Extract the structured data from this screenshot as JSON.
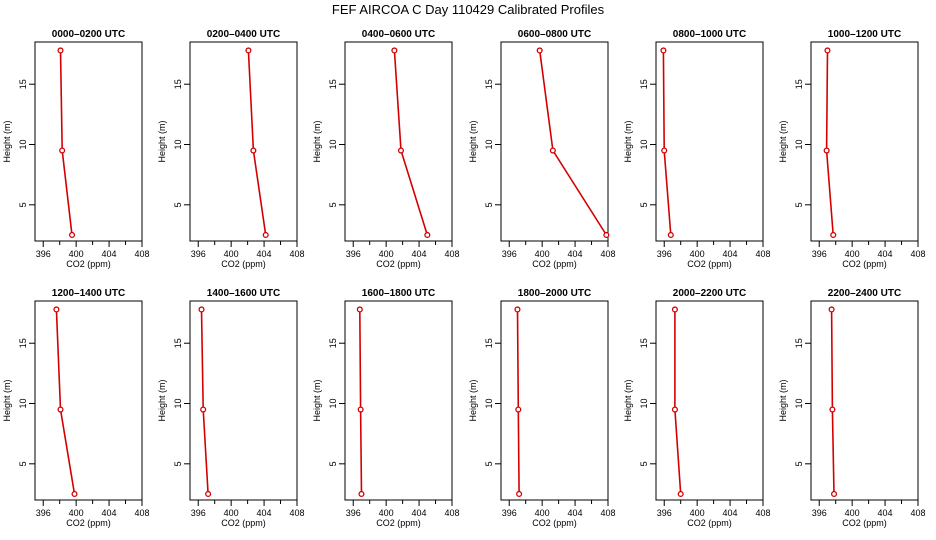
{
  "title": "FEF AIRCOA C  Day 110429  Calibrated Profiles",
  "colors": {
    "profile_line": "#d40000",
    "marker": "#d40000",
    "axes": "#000000"
  },
  "chart_data": [
    {
      "type": "line",
      "title": "0000–0200 UTC",
      "xlabel": "CO2 (ppm)",
      "ylabel": "Height (m)",
      "xlim": [
        395,
        408
      ],
      "ylim": [
        2,
        18.5
      ],
      "xticks": [
        396,
        400,
        404,
        408
      ],
      "yticks": [
        5,
        10,
        15
      ],
      "grid": false,
      "series": [
        {
          "x": [
            399.5,
            398.3,
            398.1
          ],
          "y": [
            2.5,
            9.5,
            17.8
          ]
        }
      ]
    },
    {
      "type": "line",
      "title": "0200–0400 UTC",
      "xlabel": "CO2 (ppm)",
      "ylabel": "Height (m)",
      "xlim": [
        395,
        408
      ],
      "ylim": [
        2,
        18.5
      ],
      "xticks": [
        396,
        400,
        404,
        408
      ],
      "yticks": [
        5,
        10,
        15
      ],
      "grid": false,
      "series": [
        {
          "x": [
            404.2,
            402.7,
            402.1
          ],
          "y": [
            2.5,
            9.5,
            17.8
          ]
        }
      ]
    },
    {
      "type": "line",
      "title": "0400–0600 UTC",
      "xlabel": "CO2 (ppm)",
      "ylabel": "Height (m)",
      "xlim": [
        395,
        408
      ],
      "ylim": [
        2,
        18.5
      ],
      "xticks": [
        396,
        400,
        404,
        408
      ],
      "yticks": [
        5,
        10,
        15
      ],
      "grid": false,
      "series": [
        {
          "x": [
            405.0,
            401.8,
            401.0
          ],
          "y": [
            2.5,
            9.5,
            17.8
          ]
        }
      ]
    },
    {
      "type": "line",
      "title": "0600–0800 UTC",
      "xlabel": "CO2 (ppm)",
      "ylabel": "Height (m)",
      "xlim": [
        395,
        408
      ],
      "ylim": [
        2,
        18.5
      ],
      "xticks": [
        396,
        400,
        404,
        408
      ],
      "yticks": [
        5,
        10,
        15
      ],
      "grid": false,
      "series": [
        {
          "x": [
            407.8,
            401.3,
            399.7
          ],
          "y": [
            2.5,
            9.5,
            17.8
          ]
        }
      ]
    },
    {
      "type": "line",
      "title": "0800–1000 UTC",
      "xlabel": "CO2 (ppm)",
      "ylabel": "Height (m)",
      "xlim": [
        395,
        408
      ],
      "ylim": [
        2,
        18.5
      ],
      "xticks": [
        396,
        400,
        404,
        408
      ],
      "yticks": [
        5,
        10,
        15
      ],
      "grid": false,
      "series": [
        {
          "x": [
            396.8,
            396.0,
            395.9
          ],
          "y": [
            2.5,
            9.5,
            17.8
          ]
        }
      ]
    },
    {
      "type": "line",
      "title": "1000–1200 UTC",
      "xlabel": "CO2 (ppm)",
      "ylabel": "Height (m)",
      "xlim": [
        395,
        408
      ],
      "ylim": [
        2,
        18.5
      ],
      "xticks": [
        396,
        400,
        404,
        408
      ],
      "yticks": [
        5,
        10,
        15
      ],
      "grid": false,
      "series": [
        {
          "x": [
            397.7,
            396.9,
            397.0
          ],
          "y": [
            2.5,
            9.5,
            17.8
          ]
        }
      ]
    },
    {
      "type": "line",
      "title": "1200–1400 UTC",
      "xlabel": "CO2 (ppm)",
      "ylabel": "Height (m)",
      "xlim": [
        395,
        408
      ],
      "ylim": [
        2,
        18.5
      ],
      "xticks": [
        396,
        400,
        404,
        408
      ],
      "yticks": [
        5,
        10,
        15
      ],
      "grid": false,
      "series": [
        {
          "x": [
            399.8,
            398.1,
            397.6
          ],
          "y": [
            2.5,
            9.5,
            17.8
          ]
        }
      ]
    },
    {
      "type": "line",
      "title": "1400–1600 UTC",
      "xlabel": "CO2 (ppm)",
      "ylabel": "Height (m)",
      "xlim": [
        395,
        408
      ],
      "ylim": [
        2,
        18.5
      ],
      "xticks": [
        396,
        400,
        404,
        408
      ],
      "yticks": [
        5,
        10,
        15
      ],
      "grid": false,
      "series": [
        {
          "x": [
            397.2,
            396.6,
            396.4
          ],
          "y": [
            2.5,
            9.5,
            17.8
          ]
        }
      ]
    },
    {
      "type": "line",
      "title": "1600–1800 UTC",
      "xlabel": "CO2 (ppm)",
      "ylabel": "Height (m)",
      "xlim": [
        395,
        408
      ],
      "ylim": [
        2,
        18.5
      ],
      "xticks": [
        396,
        400,
        404,
        408
      ],
      "yticks": [
        5,
        10,
        15
      ],
      "grid": false,
      "series": [
        {
          "x": [
            397.0,
            396.9,
            396.8
          ],
          "y": [
            2.5,
            9.5,
            17.8
          ]
        }
      ]
    },
    {
      "type": "line",
      "title": "1800–2000 UTC",
      "xlabel": "CO2 (ppm)",
      "ylabel": "Height (m)",
      "xlim": [
        395,
        408
      ],
      "ylim": [
        2,
        18.5
      ],
      "xticks": [
        396,
        400,
        404,
        408
      ],
      "yticks": [
        5,
        10,
        15
      ],
      "grid": false,
      "series": [
        {
          "x": [
            397.2,
            397.1,
            397.0
          ],
          "y": [
            2.5,
            9.5,
            17.8
          ]
        }
      ]
    },
    {
      "type": "line",
      "title": "2000–2200 UTC",
      "xlabel": "CO2 (ppm)",
      "ylabel": "Height (m)",
      "xlim": [
        395,
        408
      ],
      "ylim": [
        2,
        18.5
      ],
      "xticks": [
        396,
        400,
        404,
        408
      ],
      "yticks": [
        5,
        10,
        15
      ],
      "grid": false,
      "series": [
        {
          "x": [
            398.0,
            397.3,
            397.3
          ],
          "y": [
            2.5,
            9.5,
            17.8
          ]
        }
      ]
    },
    {
      "type": "line",
      "title": "2200–2400 UTC",
      "xlabel": "CO2 (ppm)",
      "ylabel": "Height (m)",
      "xlim": [
        395,
        408
      ],
      "ylim": [
        2,
        18.5
      ],
      "xticks": [
        396,
        400,
        404,
        408
      ],
      "yticks": [
        5,
        10,
        15
      ],
      "grid": false,
      "series": [
        {
          "x": [
            397.8,
            397.6,
            397.5
          ],
          "y": [
            2.5,
            9.5,
            17.8
          ]
        }
      ]
    }
  ]
}
